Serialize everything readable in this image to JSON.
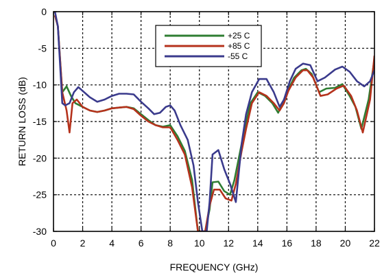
{
  "chart_data": {
    "type": "line",
    "title": "",
    "xlabel": "FREQUENCY (GHz)",
    "ylabel": "RETURN LOSS (dB)",
    "xlim": [
      0,
      22
    ],
    "ylim": [
      -30,
      0
    ],
    "xticks": [
      0,
      2,
      4,
      6,
      8,
      10,
      12,
      14,
      16,
      18,
      20,
      22
    ],
    "yticks": [
      0,
      -5,
      -10,
      -15,
      -20,
      -25,
      -30
    ],
    "grid": true,
    "grid_style": "dashed",
    "legend_position": "top-center",
    "series": [
      {
        "name": "+25 C",
        "color": "#2e7d32",
        "points": [
          [
            0.1,
            -0.5
          ],
          [
            0.3,
            -2
          ],
          [
            0.6,
            -11
          ],
          [
            0.9,
            -10.2
          ],
          [
            1.2,
            -11.5
          ],
          [
            1.5,
            -12.5
          ],
          [
            2,
            -13
          ],
          [
            2.5,
            -13.5
          ],
          [
            3,
            -13.7
          ],
          [
            3.5,
            -13.5
          ],
          [
            4,
            -13.2
          ],
          [
            4.5,
            -13.1
          ],
          [
            5,
            -13
          ],
          [
            5.5,
            -13.2
          ],
          [
            6,
            -14
          ],
          [
            6.5,
            -14.8
          ],
          [
            7,
            -15.5
          ],
          [
            7.5,
            -15.7
          ],
          [
            8,
            -15.5
          ],
          [
            8.5,
            -17
          ],
          [
            9,
            -19
          ],
          [
            9.5,
            -23
          ],
          [
            9.9,
            -30
          ],
          [
            10.4,
            -30
          ],
          [
            10.7,
            -27
          ],
          [
            10.9,
            -23.3
          ],
          [
            11.3,
            -23.2
          ],
          [
            11.7,
            -24.5
          ],
          [
            12.1,
            -25
          ],
          [
            12.4,
            -23
          ],
          [
            12.8,
            -19
          ],
          [
            13.1,
            -16
          ],
          [
            13.5,
            -12.5
          ],
          [
            14,
            -11
          ],
          [
            14.5,
            -11.5
          ],
          [
            15,
            -12.5
          ],
          [
            15.4,
            -13.8
          ],
          [
            15.7,
            -12.5
          ],
          [
            16,
            -11
          ],
          [
            16.5,
            -9
          ],
          [
            17,
            -8
          ],
          [
            17.3,
            -7.8
          ],
          [
            17.7,
            -8.5
          ],
          [
            18.2,
            -11
          ],
          [
            18.7,
            -10.5
          ],
          [
            19.3,
            -10.4
          ],
          [
            19.8,
            -9.9
          ],
          [
            20.3,
            -11.5
          ],
          [
            20.7,
            -13
          ],
          [
            21.1,
            -16
          ],
          [
            21.6,
            -12
          ],
          [
            22,
            -6.5
          ]
        ]
      },
      {
        "name": "+85 C",
        "color": "#b5321c",
        "points": [
          [
            0.1,
            -0.5
          ],
          [
            0.3,
            -2
          ],
          [
            0.6,
            -11
          ],
          [
            0.9,
            -13.5
          ],
          [
            1.1,
            -16.5
          ],
          [
            1.3,
            -12.5
          ],
          [
            1.6,
            -12
          ],
          [
            2,
            -13
          ],
          [
            2.5,
            -13.5
          ],
          [
            3,
            -13.7
          ],
          [
            3.5,
            -13.5
          ],
          [
            4,
            -13.2
          ],
          [
            4.5,
            -13.1
          ],
          [
            5,
            -13
          ],
          [
            5.5,
            -13.3
          ],
          [
            6,
            -14.2
          ],
          [
            6.5,
            -15
          ],
          [
            7,
            -15.5
          ],
          [
            7.5,
            -15.8
          ],
          [
            8,
            -15.8
          ],
          [
            8.5,
            -17.5
          ],
          [
            9,
            -19.5
          ],
          [
            9.5,
            -24
          ],
          [
            9.9,
            -30
          ],
          [
            10.4,
            -30
          ],
          [
            10.7,
            -26.5
          ],
          [
            11,
            -24.3
          ],
          [
            11.4,
            -24.3
          ],
          [
            11.8,
            -25.5
          ],
          [
            12.2,
            -25.8
          ],
          [
            12.5,
            -23.5
          ],
          [
            12.9,
            -19
          ],
          [
            13.2,
            -16
          ],
          [
            13.6,
            -12.5
          ],
          [
            14.1,
            -11
          ],
          [
            14.6,
            -11.5
          ],
          [
            15.1,
            -12.5
          ],
          [
            15.5,
            -13.5
          ],
          [
            15.8,
            -12.5
          ],
          [
            16.1,
            -10.8
          ],
          [
            16.6,
            -9
          ],
          [
            17.1,
            -8
          ],
          [
            17.4,
            -8
          ],
          [
            17.8,
            -9
          ],
          [
            18.3,
            -11.5
          ],
          [
            18.8,
            -11.3
          ],
          [
            19.4,
            -10.5
          ],
          [
            19.9,
            -10.1
          ],
          [
            20.4,
            -11.5
          ],
          [
            20.8,
            -13.5
          ],
          [
            21.2,
            -16.5
          ],
          [
            21.7,
            -12
          ],
          [
            22,
            -6
          ]
        ]
      },
      {
        "name": "-55 C",
        "color": "#3a3a8c",
        "points": [
          [
            0.1,
            0
          ],
          [
            0.3,
            -2
          ],
          [
            0.6,
            -12.5
          ],
          [
            0.8,
            -12.8
          ],
          [
            1.1,
            -12.5
          ],
          [
            1.4,
            -11
          ],
          [
            1.7,
            -10.3
          ],
          [
            2.1,
            -11
          ],
          [
            2.5,
            -11.7
          ],
          [
            3,
            -12.3
          ],
          [
            3.5,
            -12
          ],
          [
            4,
            -11.5
          ],
          [
            4.5,
            -11.2
          ],
          [
            5,
            -11.2
          ],
          [
            5.5,
            -11.3
          ],
          [
            6,
            -12.3
          ],
          [
            6.5,
            -13.2
          ],
          [
            6.9,
            -14
          ],
          [
            7.3,
            -13.8
          ],
          [
            7.7,
            -13
          ],
          [
            8,
            -12.8
          ],
          [
            8.3,
            -13.5
          ],
          [
            8.7,
            -15.5
          ],
          [
            9.2,
            -17.5
          ],
          [
            9.6,
            -21
          ],
          [
            9.9,
            -26
          ],
          [
            10.2,
            -30
          ],
          [
            10.5,
            -30
          ],
          [
            10.7,
            -26
          ],
          [
            10.9,
            -19.5
          ],
          [
            11.3,
            -18.9
          ],
          [
            11.7,
            -21.5
          ],
          [
            12.1,
            -23.5
          ],
          [
            12.5,
            -26
          ],
          [
            12.9,
            -18
          ],
          [
            13.2,
            -14
          ],
          [
            13.6,
            -11
          ],
          [
            14.1,
            -9.2
          ],
          [
            14.6,
            -9.2
          ],
          [
            15.1,
            -11
          ],
          [
            15.5,
            -13
          ],
          [
            15.8,
            -12
          ],
          [
            16.2,
            -9.5
          ],
          [
            16.6,
            -7.8
          ],
          [
            17.1,
            -7.1
          ],
          [
            17.6,
            -7.3
          ],
          [
            18.1,
            -9.5
          ],
          [
            18.6,
            -9
          ],
          [
            19.3,
            -7.9
          ],
          [
            19.8,
            -7.5
          ],
          [
            20.3,
            -8.2
          ],
          [
            20.8,
            -9.5
          ],
          [
            21.3,
            -10.2
          ],
          [
            21.7,
            -9.5
          ],
          [
            22,
            -8
          ]
        ]
      }
    ]
  }
}
